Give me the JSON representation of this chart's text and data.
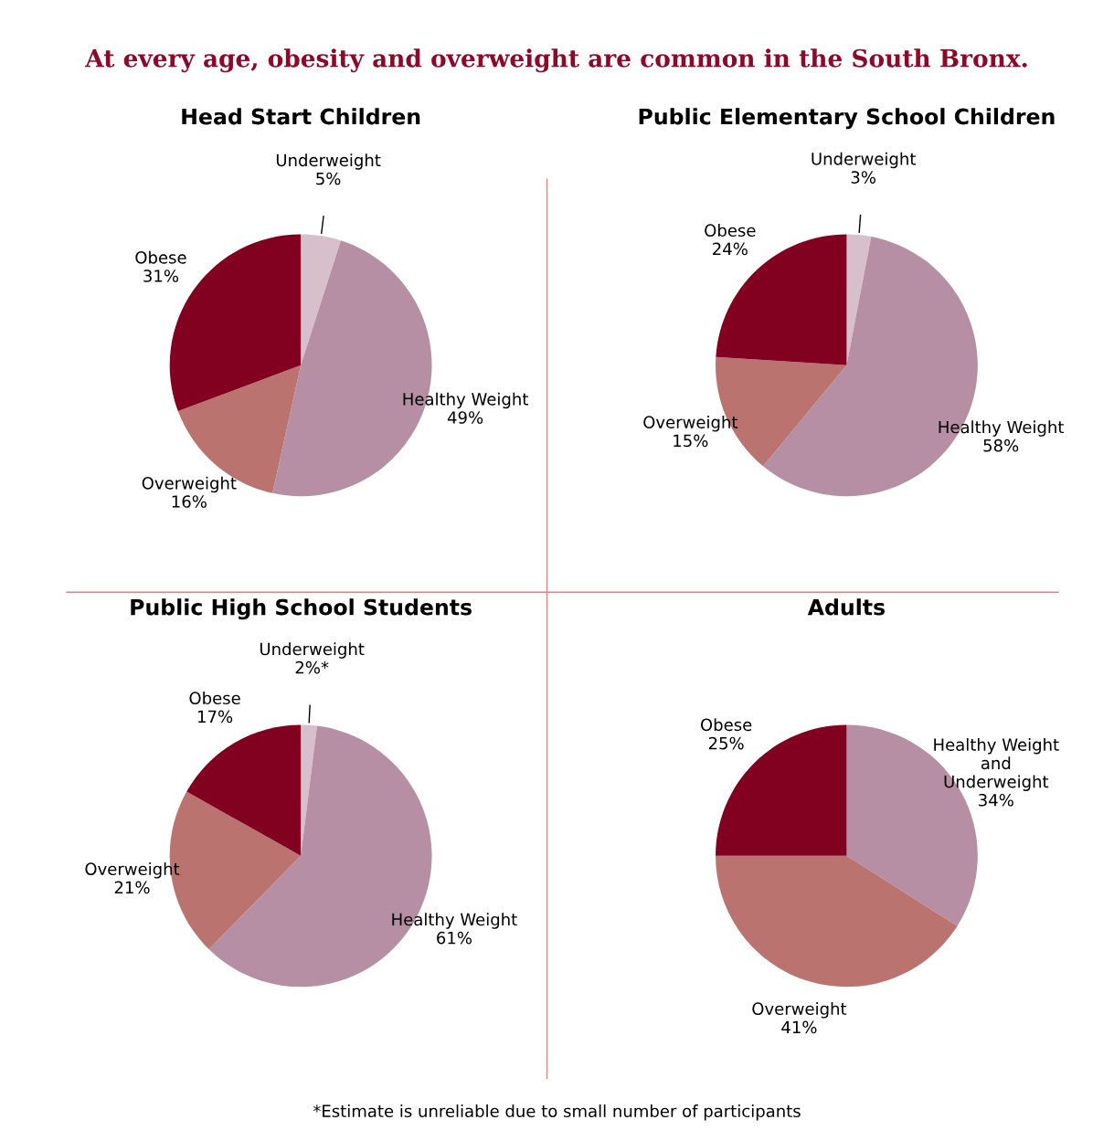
{
  "chart_data": [
    {
      "type": "pie",
      "title": "Head Start Children",
      "categories": [
        "Underweight",
        "Healthy Weight",
        "Overweight",
        "Obese"
      ],
      "values": [
        5,
        49,
        16,
        31
      ],
      "value_labels": [
        "5%",
        "49%",
        "16%",
        "31%"
      ],
      "colors": [
        "#d8bfcc",
        "#b68fa4",
        "#bb7370",
        "#820020"
      ],
      "annotations": [
        "At every age, obesity and overweight are common in the South Bronx."
      ]
    },
    {
      "type": "pie",
      "title": "Public Elementary School Children",
      "categories": [
        "Underweight",
        "Healthy Weight",
        "Overweight",
        "Obese"
      ],
      "values": [
        3,
        58,
        15,
        24
      ],
      "value_labels": [
        "3%",
        "58%",
        "15%",
        "24%"
      ],
      "colors": [
        "#d8bfcc",
        "#b68fa4",
        "#bb7370",
        "#820020"
      ]
    },
    {
      "type": "pie",
      "title": "Public High School Students",
      "categories": [
        "Underweight",
        "Healthy Weight",
        "Overweight",
        "Obese"
      ],
      "values": [
        2,
        61,
        21,
        17
      ],
      "value_labels": [
        "2%*",
        "61%",
        "21%",
        "17%"
      ],
      "colors": [
        "#d8bfcc",
        "#b68fa4",
        "#bb7370",
        "#820020"
      ]
    },
    {
      "type": "pie",
      "title": "Adults",
      "categories": [
        "Healthy Weight and Underweight",
        "Overweight",
        "Obese"
      ],
      "values": [
        34,
        41,
        25
      ],
      "value_labels": [
        "34%",
        "41%",
        "25%"
      ],
      "colors": [
        "#b68fa4",
        "#bb7370",
        "#820020"
      ],
      "annotations": [
        "*Estimate is unreliable due to small number of participants"
      ]
    }
  ]
}
